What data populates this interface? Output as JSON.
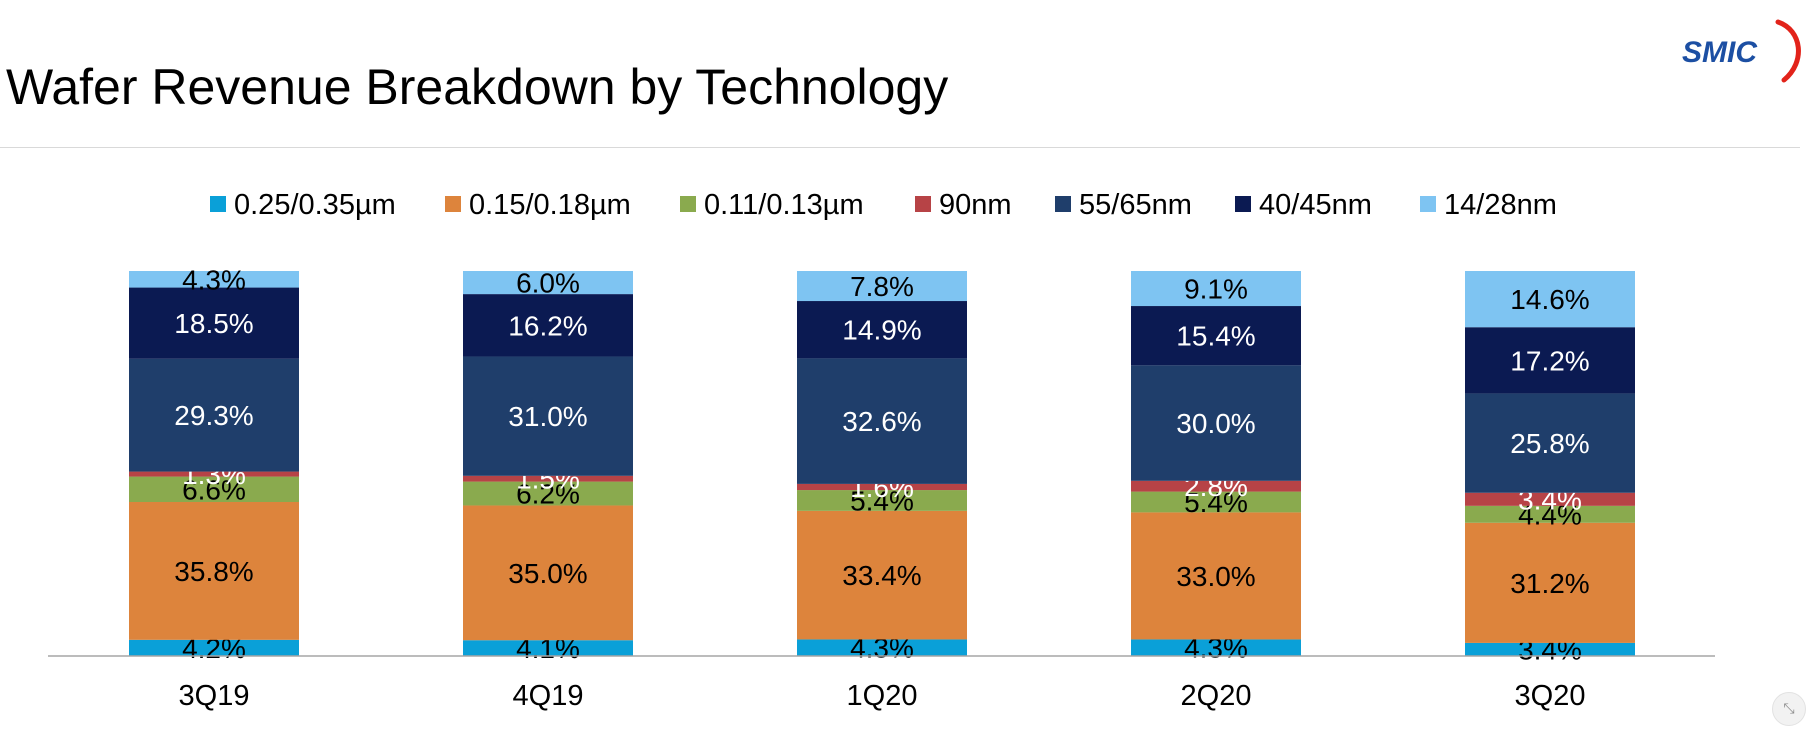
{
  "page": {
    "title": "Wafer Revenue Breakdown by Technology"
  },
  "logo": {
    "text": "SMIC",
    "icon": "smic-logo",
    "colors": {
      "text": "#1c4fa3",
      "swoosh": "#e2231a"
    }
  },
  "corner_button": {
    "icon": "collapse-icon",
    "glyph": "⤡"
  },
  "chart_data": {
    "type": "bar",
    "stacked": true,
    "title": "",
    "xlabel": "",
    "ylabel": "",
    "ylim": [
      0,
      100
    ],
    "unit": "%",
    "grid": false,
    "legend_position": "top",
    "categories": [
      "3Q19",
      "4Q19",
      "1Q20",
      "2Q20",
      "3Q20"
    ],
    "series": [
      {
        "name": "0.25/0.35µm",
        "color": "#0aa0d8",
        "label_color": "#000000",
        "values": [
          4.2,
          4.1,
          4.3,
          4.3,
          3.4
        ]
      },
      {
        "name": "0.15/0.18µm",
        "color": "#dd843c",
        "label_color": "#000000",
        "values": [
          35.8,
          35.0,
          33.4,
          33.0,
          31.2
        ]
      },
      {
        "name": "0.11/0.13µm",
        "color": "#8aaa4e",
        "label_color": "#000000",
        "values": [
          6.6,
          6.2,
          5.4,
          5.4,
          4.4
        ]
      },
      {
        "name": "90nm",
        "color": "#b74346",
        "label_color": "#ffffff",
        "values": [
          1.3,
          1.5,
          1.6,
          2.8,
          3.4
        ]
      },
      {
        "name": "55/65nm",
        "color": "#1f3e6b",
        "label_color": "#ffffff",
        "values": [
          29.3,
          31.0,
          32.6,
          30.0,
          25.8
        ]
      },
      {
        "name": "40/45nm",
        "color": "#0b1a52",
        "label_color": "#ffffff",
        "values": [
          18.5,
          16.2,
          14.9,
          15.4,
          17.2
        ]
      },
      {
        "name": "14/28nm",
        "color": "#7ec4f2",
        "label_color": "#000000",
        "values": [
          4.3,
          6.0,
          7.8,
          9.1,
          14.6
        ]
      }
    ]
  }
}
